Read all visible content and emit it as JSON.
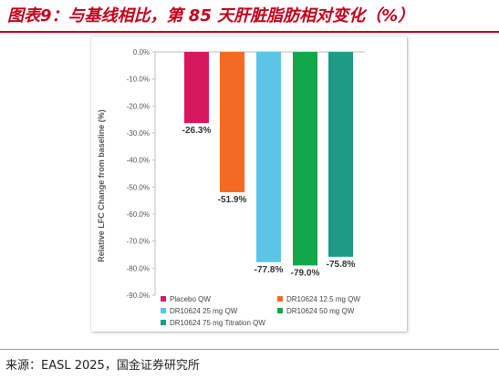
{
  "header": {
    "figure_title": "图表9：与基线相比，第 85 天肝脏脂肪相对变化（%）"
  },
  "footer": {
    "source": "来源：EASL 2025，国金证券研究所"
  },
  "colors": {
    "title_red": "#c0001c",
    "placebo": "#d6185e",
    "dr_12_5": "#f26b22",
    "dr_25": "#5bc5e8",
    "dr_50": "#12a74a",
    "dr_75": "#1e9a85"
  },
  "chart_data": {
    "type": "bar",
    "title": "",
    "xlabel": "",
    "ylabel": "Relative LFC Change from baseline (%)",
    "ylim": [
      -90,
      0
    ],
    "yticks": [
      0,
      -10,
      -20,
      -30,
      -40,
      -50,
      -60,
      -70,
      -80,
      -90
    ],
    "ytick_labels": [
      "0.0%",
      "-10.0%",
      "-20.0%",
      "-30.0%",
      "-40.0%",
      "-50.0%",
      "-60.0%",
      "-70.0%",
      "-80.0%",
      "-90.0%"
    ],
    "grid": false,
    "legend_position": "bottom",
    "categories": [
      "Placebo QW",
      "DR10624 12.5 mg QW",
      "DR10624 25 mg QW",
      "DR10624 50 mg QW",
      "DR10624 75 mg Titration QW"
    ],
    "values": [
      -26.3,
      -51.9,
      -77.8,
      -79.0,
      -75.8
    ],
    "data_labels": [
      "-26.3%",
      "-51.9%",
      "-77.8%",
      "-79.0%",
      "-75.8%"
    ],
    "series_colors": [
      "#d6185e",
      "#f26b22",
      "#5bc5e8",
      "#12a74a",
      "#1e9a85"
    ]
  }
}
